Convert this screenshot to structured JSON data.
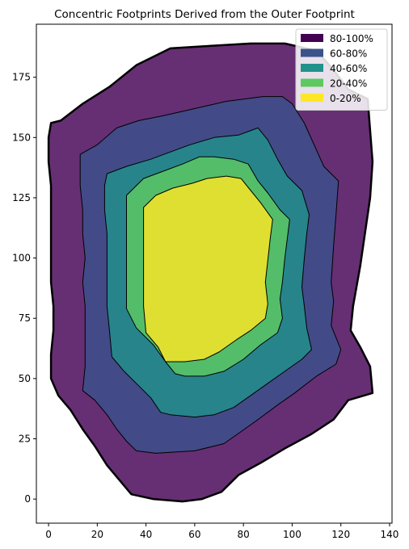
{
  "chart_data": {
    "type": "area",
    "title": "Concentric Footprints Derived from the Outer Footprint",
    "xlabel": "",
    "ylabel": "",
    "xlim": [
      -5,
      141
    ],
    "ylim": [
      -10,
      197
    ],
    "xticks": [
      0,
      20,
      40,
      60,
      80,
      100,
      120,
      140
    ],
    "yticks": [
      0,
      25,
      50,
      75,
      100,
      125,
      150,
      175
    ],
    "grid": false,
    "legend_position": "upper right",
    "legend": [
      {
        "label": "80-100%",
        "color": "#440154"
      },
      {
        "label": "60-80%",
        "color": "#3b528b"
      },
      {
        "label": "40-60%",
        "color": "#21918c"
      },
      {
        "label": "20-40%",
        "color": "#5ec962"
      },
      {
        "label": "0-20%",
        "color": "#fde725"
      }
    ],
    "series": [
      {
        "name": "80-100%",
        "color": "#440154",
        "polygon": [
          [
            1,
            156
          ],
          [
            5,
            157
          ],
          [
            14,
            164
          ],
          [
            25,
            171
          ],
          [
            36,
            180
          ],
          [
            50,
            187
          ],
          [
            66,
            188
          ],
          [
            83,
            189
          ],
          [
            97,
            189
          ],
          [
            110,
            186
          ],
          [
            117,
            178
          ],
          [
            123,
            170
          ],
          [
            131,
            166
          ],
          [
            133,
            140
          ],
          [
            132,
            125
          ],
          [
            128,
            97
          ],
          [
            125,
            80
          ],
          [
            124,
            70
          ],
          [
            128,
            63
          ],
          [
            132,
            55
          ],
          [
            133,
            44
          ],
          [
            123,
            41
          ],
          [
            117,
            33
          ],
          [
            108,
            27
          ],
          [
            97,
            21
          ],
          [
            87,
            15
          ],
          [
            78,
            10
          ],
          [
            71,
            3
          ],
          [
            63,
            0
          ],
          [
            55,
            -1
          ],
          [
            43,
            0
          ],
          [
            34,
            2
          ],
          [
            29,
            8
          ],
          [
            24,
            14
          ],
          [
            19,
            22
          ],
          [
            14,
            29
          ],
          [
            9,
            37
          ],
          [
            4,
            43
          ],
          [
            1,
            50
          ],
          [
            1,
            60
          ],
          [
            2,
            70
          ],
          [
            2,
            80
          ],
          [
            1,
            90
          ],
          [
            1,
            100
          ],
          [
            1,
            110
          ],
          [
            1,
            120
          ],
          [
            1,
            130
          ],
          [
            0,
            140
          ],
          [
            0,
            150
          ]
        ]
      },
      {
        "name": "60-80%",
        "color": "#3b528b",
        "polygon": [
          [
            13,
            143
          ],
          [
            20,
            147
          ],
          [
            28,
            154
          ],
          [
            37,
            157
          ],
          [
            47,
            159
          ],
          [
            60,
            162
          ],
          [
            73,
            165
          ],
          [
            88,
            167
          ],
          [
            96,
            167
          ],
          [
            100,
            164
          ],
          [
            105,
            156
          ],
          [
            109,
            147
          ],
          [
            113,
            138
          ],
          [
            119,
            132
          ],
          [
            118,
            118
          ],
          [
            117,
            105
          ],
          [
            116,
            90
          ],
          [
            117,
            82
          ],
          [
            116,
            72
          ],
          [
            120,
            62
          ],
          [
            118,
            56
          ],
          [
            110,
            51
          ],
          [
            101,
            44
          ],
          [
            94,
            39
          ],
          [
            86,
            33
          ],
          [
            79,
            28
          ],
          [
            72,
            23
          ],
          [
            60,
            20
          ],
          [
            44,
            19
          ],
          [
            36,
            20
          ],
          [
            32,
            24
          ],
          [
            28,
            29
          ],
          [
            24,
            35
          ],
          [
            19,
            41
          ],
          [
            14,
            45
          ],
          [
            15,
            55
          ],
          [
            15,
            70
          ],
          [
            15,
            80
          ],
          [
            14,
            90
          ],
          [
            15,
            100
          ],
          [
            14,
            110
          ],
          [
            14,
            120
          ],
          [
            13,
            130
          ]
        ]
      },
      {
        "name": "40-60%",
        "color": "#21918c",
        "polygon": [
          [
            24,
            135
          ],
          [
            32,
            138
          ],
          [
            42,
            141
          ],
          [
            50,
            144
          ],
          [
            58,
            147
          ],
          [
            68,
            150
          ],
          [
            78,
            151
          ],
          [
            86,
            154
          ],
          [
            90,
            149
          ],
          [
            94,
            141
          ],
          [
            98,
            134
          ],
          [
            104,
            128
          ],
          [
            107,
            118
          ],
          [
            106,
            110
          ],
          [
            105,
            100
          ],
          [
            104,
            88
          ],
          [
            105,
            80
          ],
          [
            106,
            71
          ],
          [
            108,
            62
          ],
          [
            104,
            58
          ],
          [
            97,
            53
          ],
          [
            90,
            48
          ],
          [
            83,
            43
          ],
          [
            76,
            38
          ],
          [
            68,
            35
          ],
          [
            60,
            34
          ],
          [
            50,
            35
          ],
          [
            46,
            36
          ],
          [
            42,
            42
          ],
          [
            37,
            47
          ],
          [
            31,
            53
          ],
          [
            26,
            59
          ],
          [
            25,
            70
          ],
          [
            24,
            80
          ],
          [
            24,
            90
          ],
          [
            24,
            100
          ],
          [
            24,
            110
          ],
          [
            23,
            120
          ],
          [
            23,
            130
          ]
        ]
      },
      {
        "name": "20-40%",
        "color": "#5ec962",
        "polygon": [
          [
            32,
            126
          ],
          [
            39,
            133
          ],
          [
            47,
            136
          ],
          [
            55,
            139
          ],
          [
            62,
            142
          ],
          [
            68,
            142
          ],
          [
            76,
            141
          ],
          [
            82,
            139
          ],
          [
            86,
            132
          ],
          [
            90,
            127
          ],
          [
            95,
            120
          ],
          [
            99,
            116
          ],
          [
            98,
            108
          ],
          [
            97,
            100
          ],
          [
            96,
            90
          ],
          [
            95,
            83
          ],
          [
            96,
            75
          ],
          [
            94,
            69
          ],
          [
            87,
            64
          ],
          [
            80,
            58
          ],
          [
            72,
            53
          ],
          [
            64,
            51
          ],
          [
            56,
            51
          ],
          [
            52,
            52
          ],
          [
            48,
            57
          ],
          [
            43,
            64
          ],
          [
            36,
            71
          ],
          [
            32,
            79
          ],
          [
            32,
            90
          ],
          [
            32,
            100
          ],
          [
            32,
            110
          ],
          [
            32,
            120
          ]
        ]
      },
      {
        "name": "0-20%",
        "color": "#fde725",
        "polygon": [
          [
            39,
            121
          ],
          [
            44,
            126
          ],
          [
            51,
            129
          ],
          [
            59,
            131
          ],
          [
            65,
            133
          ],
          [
            73,
            134
          ],
          [
            79,
            133
          ],
          [
            83,
            128
          ],
          [
            87,
            123
          ],
          [
            92,
            116
          ],
          [
            91,
            108
          ],
          [
            90,
            99
          ],
          [
            89,
            90
          ],
          [
            90,
            81
          ],
          [
            89,
            75
          ],
          [
            83,
            70
          ],
          [
            77,
            66
          ],
          [
            70,
            61
          ],
          [
            64,
            58
          ],
          [
            56,
            57
          ],
          [
            48,
            57
          ],
          [
            45,
            63
          ],
          [
            40,
            69
          ],
          [
            39,
            80
          ],
          [
            39,
            90
          ],
          [
            39,
            100
          ],
          [
            39,
            110
          ]
        ]
      }
    ]
  }
}
